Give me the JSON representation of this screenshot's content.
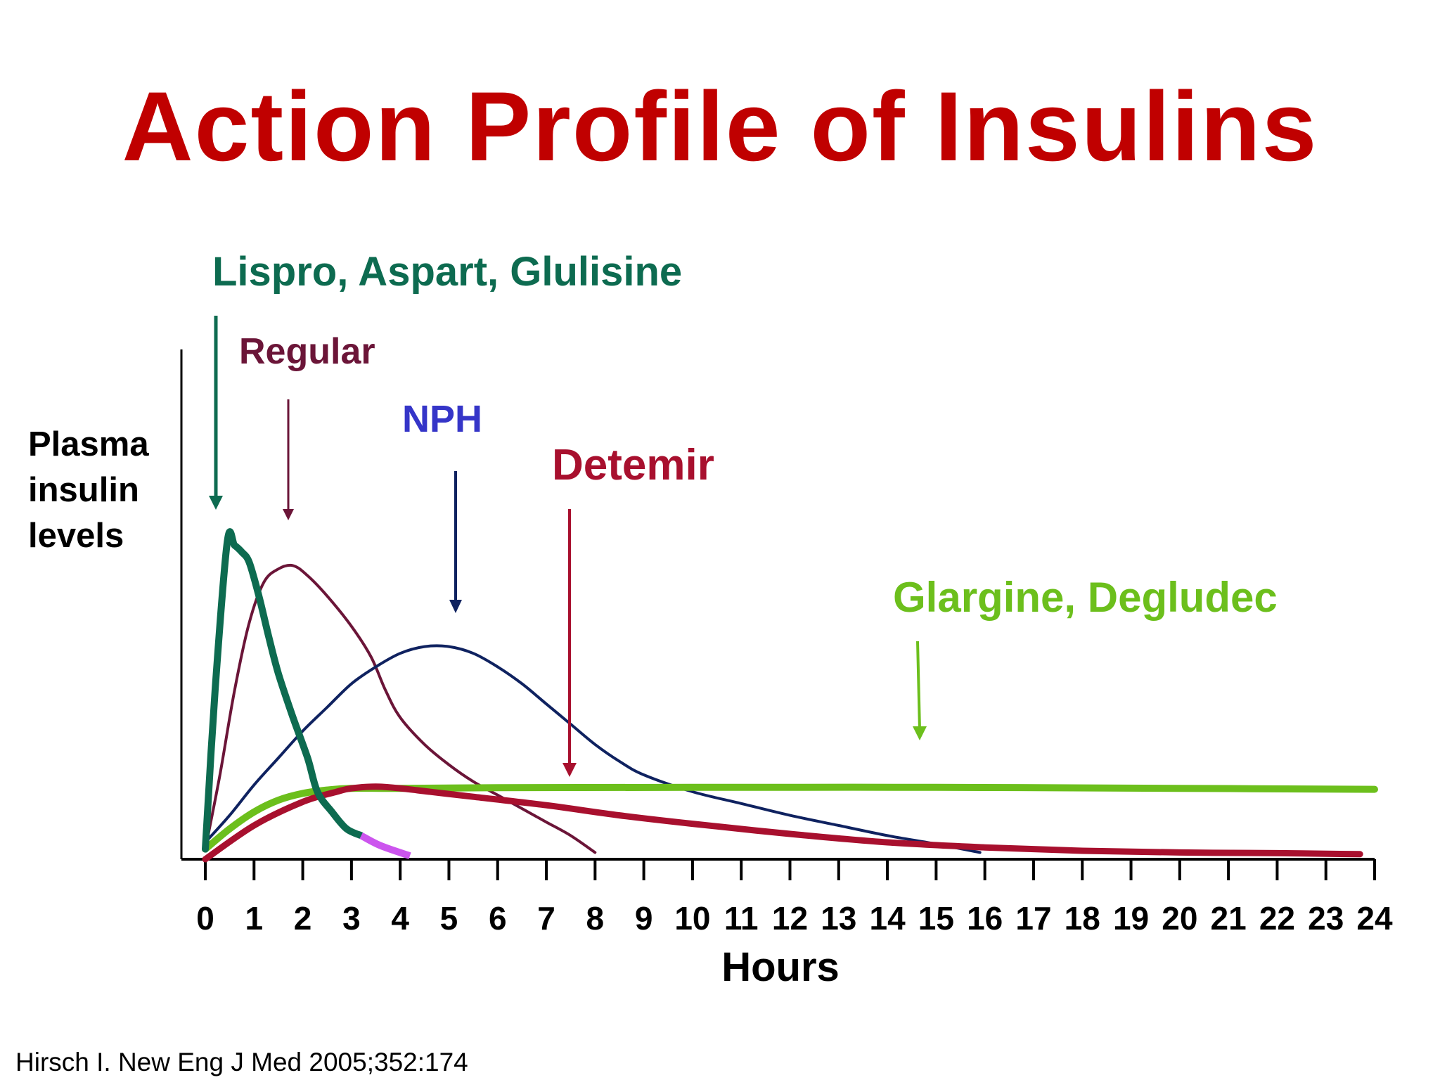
{
  "title": "Action Profile of Insulins",
  "citation": "Hirsch I. New Eng J Med 2005;352:174",
  "chart_data": {
    "type": "line",
    "title": "Action Profile of Insulins",
    "xlabel": "Hours",
    "ylabel_lines": [
      "Plasma",
      "insulin",
      "levels"
    ],
    "xlim": [
      0,
      24
    ],
    "ylim": [
      0,
      1
    ],
    "x_ticks": [
      "0",
      "1",
      "2",
      "3",
      "4",
      "5",
      "6",
      "7",
      "8",
      "9",
      "10",
      "11",
      "12",
      "13",
      "14",
      "15",
      "16",
      "17",
      "18",
      "19",
      "20",
      "21",
      "22",
      "23",
      "24"
    ],
    "grid": false,
    "series": [
      {
        "name": "Lispro, Aspart, Glulisine",
        "color": "#0d6b50",
        "tail_color": "#cc55ee",
        "tail_from_x": 3.2,
        "points": [
          [
            0,
            0.03
          ],
          [
            0.2,
            0.5
          ],
          [
            0.45,
            0.94
          ],
          [
            0.6,
            0.93
          ],
          [
            0.75,
            0.91
          ],
          [
            0.9,
            0.88
          ],
          [
            1.1,
            0.78
          ],
          [
            1.3,
            0.66
          ],
          [
            1.5,
            0.55
          ],
          [
            1.8,
            0.42
          ],
          [
            2.1,
            0.3
          ],
          [
            2.3,
            0.2
          ],
          [
            2.6,
            0.14
          ],
          [
            2.9,
            0.09
          ],
          [
            3.2,
            0.07
          ],
          [
            3.6,
            0.04
          ],
          [
            4.2,
            0.01
          ]
        ]
      },
      {
        "name": "Regular",
        "color": "#6b1538",
        "points": [
          [
            0,
            0.03
          ],
          [
            0.3,
            0.25
          ],
          [
            0.6,
            0.5
          ],
          [
            0.9,
            0.7
          ],
          [
            1.2,
            0.82
          ],
          [
            1.5,
            0.86
          ],
          [
            1.8,
            0.87
          ],
          [
            2.1,
            0.84
          ],
          [
            2.5,
            0.78
          ],
          [
            3.0,
            0.69
          ],
          [
            3.4,
            0.6
          ],
          [
            3.7,
            0.5
          ],
          [
            4.0,
            0.42
          ],
          [
            4.5,
            0.34
          ],
          [
            5.0,
            0.28
          ],
          [
            5.5,
            0.23
          ],
          [
            6.0,
            0.19
          ],
          [
            6.5,
            0.15
          ],
          [
            7.0,
            0.11
          ],
          [
            7.5,
            0.07
          ],
          [
            8.0,
            0.02
          ]
        ]
      },
      {
        "name": "NPH",
        "color": "#0f2260",
        "points": [
          [
            0,
            0.05
          ],
          [
            0.5,
            0.13
          ],
          [
            1.0,
            0.22
          ],
          [
            1.5,
            0.3
          ],
          [
            2.0,
            0.38
          ],
          [
            2.5,
            0.45
          ],
          [
            3.0,
            0.52
          ],
          [
            3.5,
            0.57
          ],
          [
            4.0,
            0.61
          ],
          [
            4.5,
            0.63
          ],
          [
            5.0,
            0.63
          ],
          [
            5.5,
            0.61
          ],
          [
            6.0,
            0.57
          ],
          [
            6.5,
            0.52
          ],
          [
            7.0,
            0.46
          ],
          [
            7.5,
            0.4
          ],
          [
            8.0,
            0.34
          ],
          [
            8.5,
            0.29
          ],
          [
            9.0,
            0.25
          ],
          [
            10,
            0.2
          ],
          [
            11,
            0.165
          ],
          [
            12,
            0.13
          ],
          [
            13,
            0.1
          ],
          [
            14,
            0.07
          ],
          [
            15,
            0.045
          ],
          [
            15.9,
            0.02
          ]
        ]
      },
      {
        "name": "Detemir",
        "color": "#a8102e",
        "points": [
          [
            0,
            0.0
          ],
          [
            1.0,
            0.1
          ],
          [
            2.0,
            0.17
          ],
          [
            2.7,
            0.2
          ],
          [
            3.0,
            0.21
          ],
          [
            3.5,
            0.215
          ],
          [
            4.0,
            0.21
          ],
          [
            4.6,
            0.2
          ],
          [
            5.5,
            0.185
          ],
          [
            7.0,
            0.16
          ],
          [
            8.5,
            0.13
          ],
          [
            10,
            0.105
          ],
          [
            12,
            0.075
          ],
          [
            14,
            0.05
          ],
          [
            16,
            0.035
          ],
          [
            18,
            0.025
          ],
          [
            20,
            0.02
          ],
          [
            22,
            0.018
          ],
          [
            23.7,
            0.015
          ]
        ]
      },
      {
        "name": "Glargine, Degludec",
        "color": "#6cbf1c",
        "points": [
          [
            0,
            0.03
          ],
          [
            0.5,
            0.09
          ],
          [
            1.0,
            0.14
          ],
          [
            1.5,
            0.175
          ],
          [
            2.0,
            0.195
          ],
          [
            2.5,
            0.205
          ],
          [
            3.0,
            0.21
          ],
          [
            4.0,
            0.21
          ],
          [
            6.0,
            0.212
          ],
          [
            10,
            0.213
          ],
          [
            15,
            0.213
          ],
          [
            20,
            0.21
          ],
          [
            24,
            0.207
          ]
        ]
      }
    ]
  },
  "labels": {
    "lispro": "Lispro, Aspart, Glulisine",
    "regular": "Regular",
    "nph": "NPH",
    "detemir": "Detemir",
    "glargine": "Glargine, Degludec"
  },
  "colors": {
    "title": "#c00000",
    "axis": "#000000",
    "lispro_label": "#0d6b50",
    "regular_label": "#6b1538",
    "nph_label": "#3535c8",
    "nph_arrow": "#0f2260",
    "detemir_label": "#a8102e",
    "glargine_label": "#6cbf1c"
  }
}
